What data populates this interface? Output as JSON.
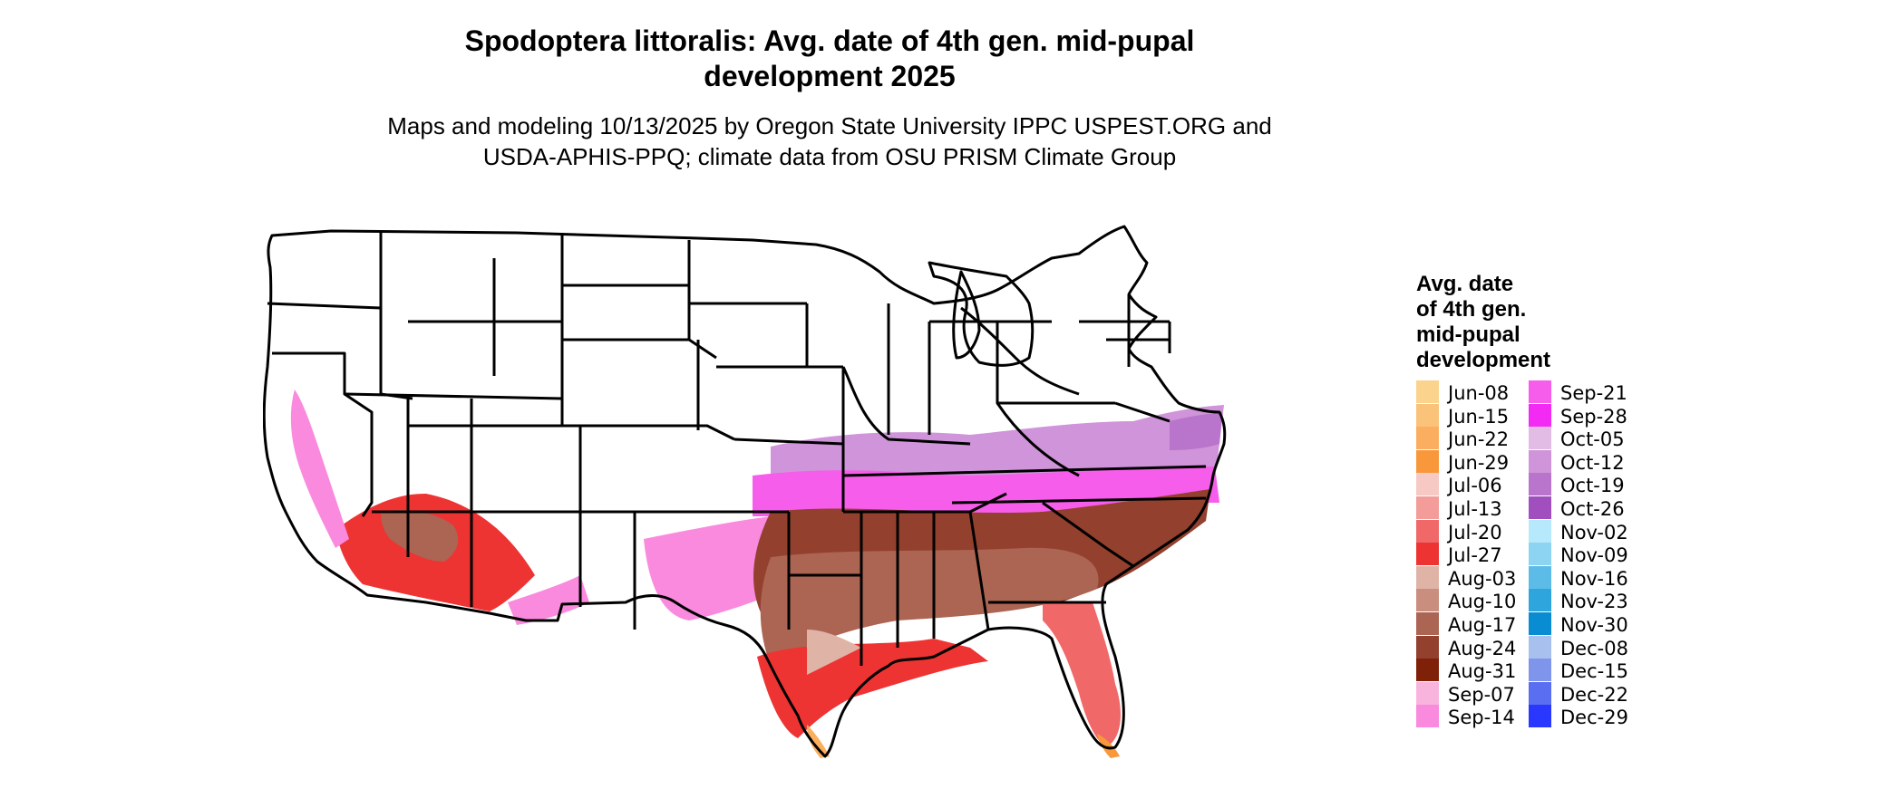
{
  "title_line1": "Spodoptera littoralis: Avg. date of 4th gen. mid-pupal",
  "title_line2": "development 2025",
  "subtitle_line1": "Maps and modeling 10/13/2025 by Oregon State University IPPC USPEST.ORG and",
  "subtitle_line2": "USDA-APHIS-PPQ; climate data from OSU PRISM Climate Group",
  "legend": {
    "title_lines": [
      "Avg. date",
      "of 4th gen.",
      "mid-pupal",
      "development"
    ],
    "items": [
      {
        "label": "Jun-08",
        "color": "#FBD38C"
      },
      {
        "label": "Jun-15",
        "color": "#FBC27A"
      },
      {
        "label": "Jun-22",
        "color": "#FBAE5F"
      },
      {
        "label": "Jun-29",
        "color": "#F9983B"
      },
      {
        "label": "Jul-06",
        "color": "#F6C9C4"
      },
      {
        "label": "Jul-13",
        "color": "#F49C9A"
      },
      {
        "label": "Jul-20",
        "color": "#F16868"
      },
      {
        "label": "Jul-27",
        "color": "#EE3333"
      },
      {
        "label": "Aug-03",
        "color": "#E0B3A7"
      },
      {
        "label": "Aug-10",
        "color": "#C98E7E"
      },
      {
        "label": "Aug-17",
        "color": "#AC6453"
      },
      {
        "label": "Aug-24",
        "color": "#93402E"
      },
      {
        "label": "Aug-31",
        "color": "#7F2009"
      },
      {
        "label": "Sep-07",
        "color": "#F9B4DD"
      },
      {
        "label": "Sep-14",
        "color": "#F98ADE"
      },
      {
        "label": "Sep-21",
        "color": "#F65DEA"
      },
      {
        "label": "Sep-28",
        "color": "#F32AF4"
      },
      {
        "label": "Oct-05",
        "color": "#E2BCE5"
      },
      {
        "label": "Oct-12",
        "color": "#CF94D9"
      },
      {
        "label": "Oct-19",
        "color": "#B875CB"
      },
      {
        "label": "Oct-26",
        "color": "#A14FBE"
      },
      {
        "label": "Nov-02",
        "color": "#B6E9FB"
      },
      {
        "label": "Nov-09",
        "color": "#8DD3F2"
      },
      {
        "label": "Nov-16",
        "color": "#5DBCE7"
      },
      {
        "label": "Nov-23",
        "color": "#2FA5DE"
      },
      {
        "label": "Nov-30",
        "color": "#0A8CD3"
      },
      {
        "label": "Dec-08",
        "color": "#A7C0EE"
      },
      {
        "label": "Dec-15",
        "color": "#7F95EC"
      },
      {
        "label": "Dec-22",
        "color": "#5A6EF1"
      },
      {
        "label": "Dec-29",
        "color": "#2937FF"
      }
    ]
  }
}
